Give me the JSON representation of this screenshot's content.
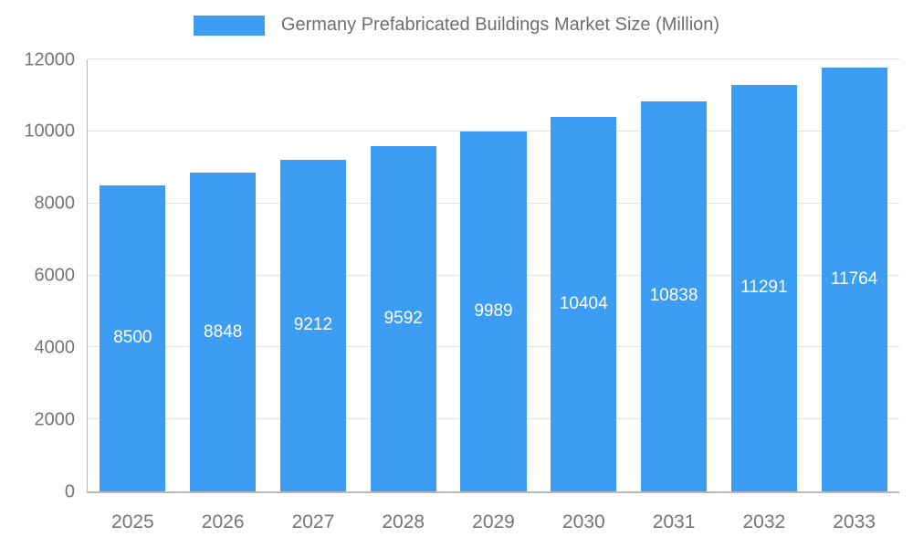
{
  "title": "Germany Prefabricated Buildings Market Size (Million)",
  "colors": {
    "bar": "#3D9DF3",
    "title": "#6E6E6E",
    "text": "#757575",
    "grid": "#E3E3E3",
    "axis": "#B9B9B9",
    "value_label": "#FFFFFF"
  },
  "chart_data": {
    "type": "bar",
    "title": "Germany Prefabricated Buildings Market Size (Million)",
    "categories": [
      "2025",
      "2026",
      "2027",
      "2028",
      "2029",
      "2030",
      "2031",
      "2032",
      "2033"
    ],
    "values": [
      8500,
      8848,
      9212,
      9592,
      9989,
      10404,
      10838,
      11291,
      11764
    ],
    "xlabel": "",
    "ylabel": "",
    "ylim": [
      0,
      12000
    ],
    "yticks": [
      0,
      2000,
      4000,
      6000,
      8000,
      10000,
      12000
    ],
    "grid": true,
    "legend_position": "top",
    "value_label_position": "inside-center"
  }
}
